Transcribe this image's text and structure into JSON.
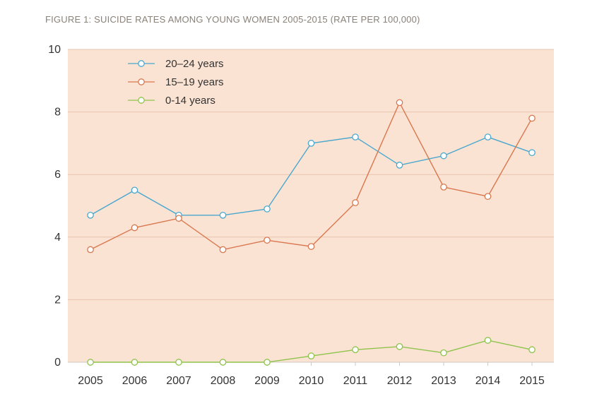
{
  "chart_data": {
    "type": "line",
    "title": "FIGURE 1: SUICIDE RATES AMONG YOUNG WOMEN 2005-2015 (RATE PER 100,000)",
    "xlabel": "",
    "ylabel": "",
    "categories": [
      "2005",
      "2006",
      "2007",
      "2008",
      "2009",
      "2010",
      "2011",
      "2012",
      "2013",
      "2014",
      "2015"
    ],
    "ylim": [
      0,
      10
    ],
    "yticks": [
      0,
      2,
      4,
      6,
      8,
      10
    ],
    "grid": "horizontal",
    "legend_position": "top-left",
    "series": [
      {
        "name": "20–24 years",
        "color": "#4aa8cf",
        "values": [
          4.7,
          5.5,
          4.7,
          4.7,
          4.9,
          7.0,
          7.2,
          6.3,
          6.6,
          7.2,
          6.7
        ]
      },
      {
        "name": "15–19 years",
        "color": "#d9774e",
        "values": [
          3.6,
          4.3,
          4.6,
          3.6,
          3.9,
          3.7,
          5.1,
          8.3,
          5.6,
          5.3,
          7.8
        ]
      },
      {
        "name": "0-14 years",
        "color": "#8ec34c",
        "values": [
          0.0,
          0.0,
          0.0,
          0.0,
          0.0,
          0.2,
          0.4,
          0.5,
          0.3,
          0.7,
          0.4
        ]
      }
    ],
    "plot_background": "#fbe3d3"
  }
}
